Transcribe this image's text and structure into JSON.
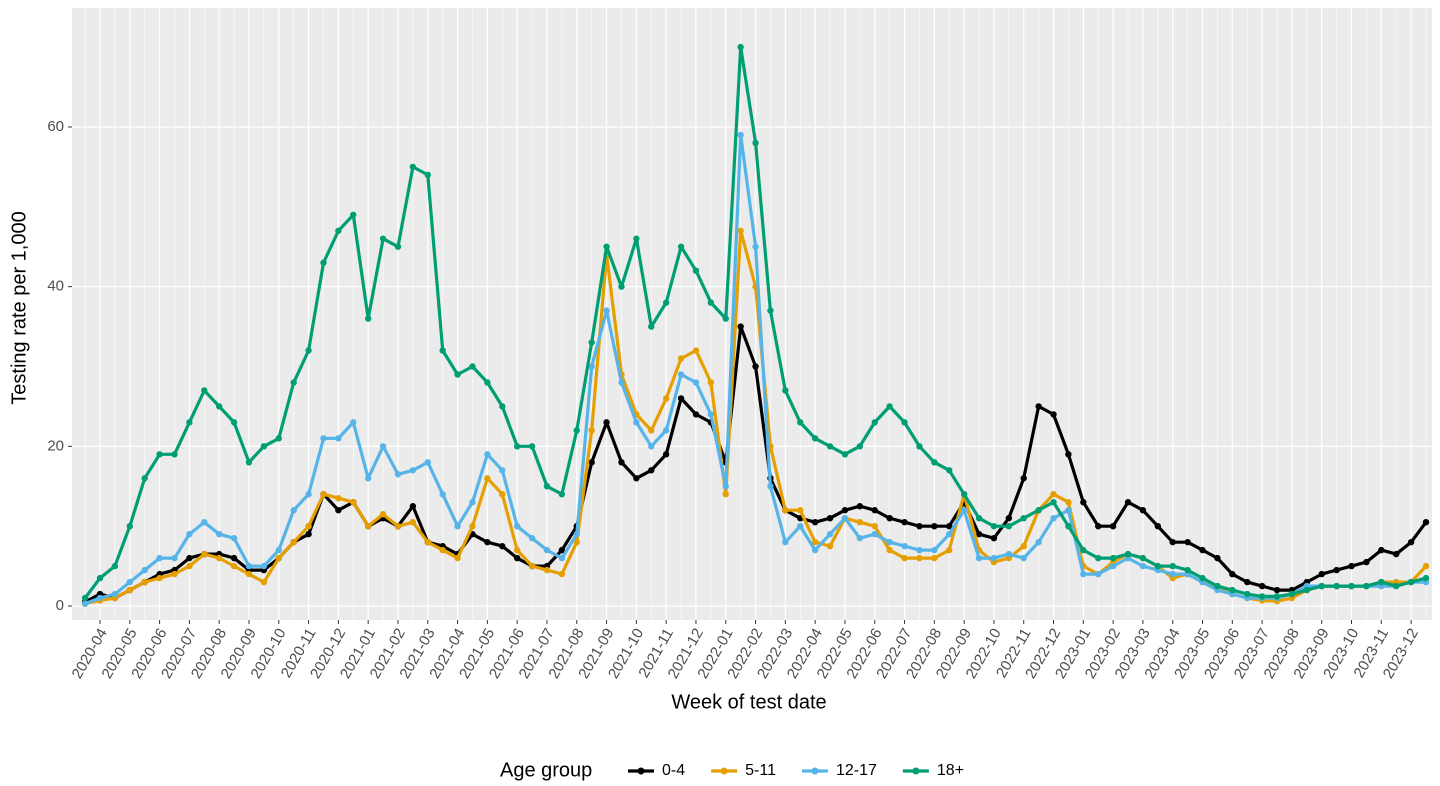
{
  "chart_data": {
    "type": "line",
    "x_label": "Week of test date",
    "y_label": "Testing rate per 1,000",
    "legend_title": "Age group",
    "legend_position": "bottom",
    "grid": true,
    "ylim": [
      -1.75,
      74.9
    ],
    "yticks": [
      0,
      20,
      40,
      60
    ],
    "categories": [
      null,
      "2020-04",
      null,
      "2020-05",
      null,
      "2020-06",
      null,
      "2020-07",
      null,
      "2020-08",
      null,
      "2020-09",
      null,
      "2020-10",
      null,
      "2020-11",
      null,
      "2020-12",
      null,
      "2021-01",
      null,
      "2021-02",
      null,
      "2021-03",
      null,
      "2021-04",
      null,
      "2021-05",
      null,
      "2021-06",
      null,
      "2021-07",
      null,
      "2021-08",
      null,
      "2021-09",
      null,
      "2021-10",
      null,
      "2021-11",
      null,
      "2021-12",
      null,
      "2022-01",
      null,
      "2022-02",
      null,
      "2022-03",
      null,
      "2022-04",
      null,
      "2022-05",
      null,
      "2022-06",
      null,
      "2022-07",
      null,
      "2022-08",
      null,
      "2022-09",
      null,
      "2022-10",
      null,
      "2022-11",
      null,
      "2022-12",
      null,
      "2023-01",
      null,
      "2023-02",
      null,
      "2023-03",
      null,
      "2023-04",
      null,
      "2023-05",
      null,
      "2023-06",
      null,
      "2023-07",
      null,
      "2023-08",
      null,
      "2023-09",
      null,
      "2023-10",
      null,
      "2023-11",
      null,
      "2023-12",
      null
    ],
    "series": [
      {
        "name": "0-4",
        "color": "#000000",
        "values": [
          0.5,
          1.5,
          1,
          2,
          3,
          4,
          4.5,
          6,
          6.5,
          6.5,
          6,
          4.5,
          4.5,
          6,
          8,
          9,
          14,
          12,
          13,
          10,
          11,
          10,
          12.5,
          8,
          7.5,
          6.5,
          9,
          8,
          7.5,
          6,
          5,
          5,
          7,
          10,
          18,
          23,
          18,
          16,
          17,
          19,
          26,
          24,
          23,
          18,
          35,
          30,
          16,
          12,
          11,
          10.5,
          11,
          12,
          12.5,
          12,
          11,
          10.5,
          10,
          10,
          10,
          13,
          9,
          8.5,
          11,
          16,
          25,
          24,
          19,
          13,
          10,
          10,
          13,
          12,
          10,
          8,
          8,
          7,
          6,
          4,
          3,
          2.5,
          2,
          2,
          3,
          4,
          4.5,
          5,
          5.5,
          7,
          6.5,
          8,
          10.5
        ]
      },
      {
        "name": "5-11",
        "color": "#E69F00",
        "values": [
          0.3,
          0.7,
          1,
          2,
          3,
          3.5,
          4,
          5,
          6.5,
          6,
          5,
          4,
          3,
          6,
          8,
          10,
          14,
          13.5,
          13,
          10,
          11.5,
          10,
          10.5,
          8,
          7,
          6,
          10,
          16,
          14,
          7,
          5,
          4.5,
          4,
          8,
          22,
          44,
          29,
          24,
          22,
          26,
          31,
          32,
          28,
          14,
          47,
          40,
          20,
          12,
          12,
          8,
          7.5,
          11,
          10.5,
          10,
          7,
          6,
          6,
          6,
          7,
          14,
          7,
          5.5,
          6,
          7.5,
          12,
          14,
          13,
          5,
          4,
          5.5,
          6.5,
          6,
          5,
          3.5,
          4,
          3,
          2.5,
          1.5,
          1,
          0.7,
          0.6,
          1,
          2,
          2.5,
          2.5,
          2.5,
          2.5,
          3,
          3,
          3,
          5
        ]
      },
      {
        "name": "12-17",
        "color": "#56B4E9",
        "values": [
          0.3,
          1,
          1.5,
          3,
          4.5,
          6,
          6,
          9,
          10.5,
          9,
          8.5,
          5,
          5,
          7,
          12,
          14,
          21,
          21,
          23,
          16,
          20,
          16.5,
          17,
          18,
          14,
          10,
          13,
          19,
          17,
          10,
          8.5,
          7,
          6,
          9,
          30,
          37,
          28,
          23,
          20,
          22,
          29,
          28,
          24,
          15,
          59,
          45,
          15,
          8,
          10,
          7,
          9,
          11,
          8.5,
          9,
          8,
          7.5,
          7,
          7,
          9,
          12,
          6,
          6,
          6.5,
          6,
          8,
          11,
          12,
          4,
          4,
          5,
          6,
          5,
          4.5,
          4,
          4,
          3,
          2,
          1.5,
          1,
          1,
          1,
          1.5,
          2.5,
          2.5,
          2.5,
          2.5,
          2.5,
          2.5,
          2.5,
          3,
          3
        ]
      },
      {
        "name": "18+",
        "color": "#009E73",
        "values": [
          1,
          3.5,
          5,
          10,
          16,
          19,
          19,
          23,
          27,
          25,
          23,
          18,
          20,
          21,
          28,
          32,
          43,
          47,
          49,
          36,
          46,
          45,
          55,
          54,
          32,
          29,
          30,
          28,
          25,
          20,
          20,
          15,
          14,
          22,
          33,
          45,
          40,
          46,
          35,
          38,
          45,
          42,
          38,
          36,
          70,
          58,
          37,
          27,
          23,
          21,
          20,
          19,
          20,
          23,
          25,
          23,
          20,
          18,
          17,
          14,
          11,
          10,
          10,
          11,
          12,
          13,
          10,
          7,
          6,
          6,
          6.5,
          6,
          5,
          5,
          4.5,
          3.5,
          2.5,
          2,
          1.5,
          1.2,
          1.2,
          1.5,
          2,
          2.5,
          2.5,
          2.5,
          2.5,
          3,
          2.5,
          3,
          3.5
        ]
      }
    ]
  }
}
